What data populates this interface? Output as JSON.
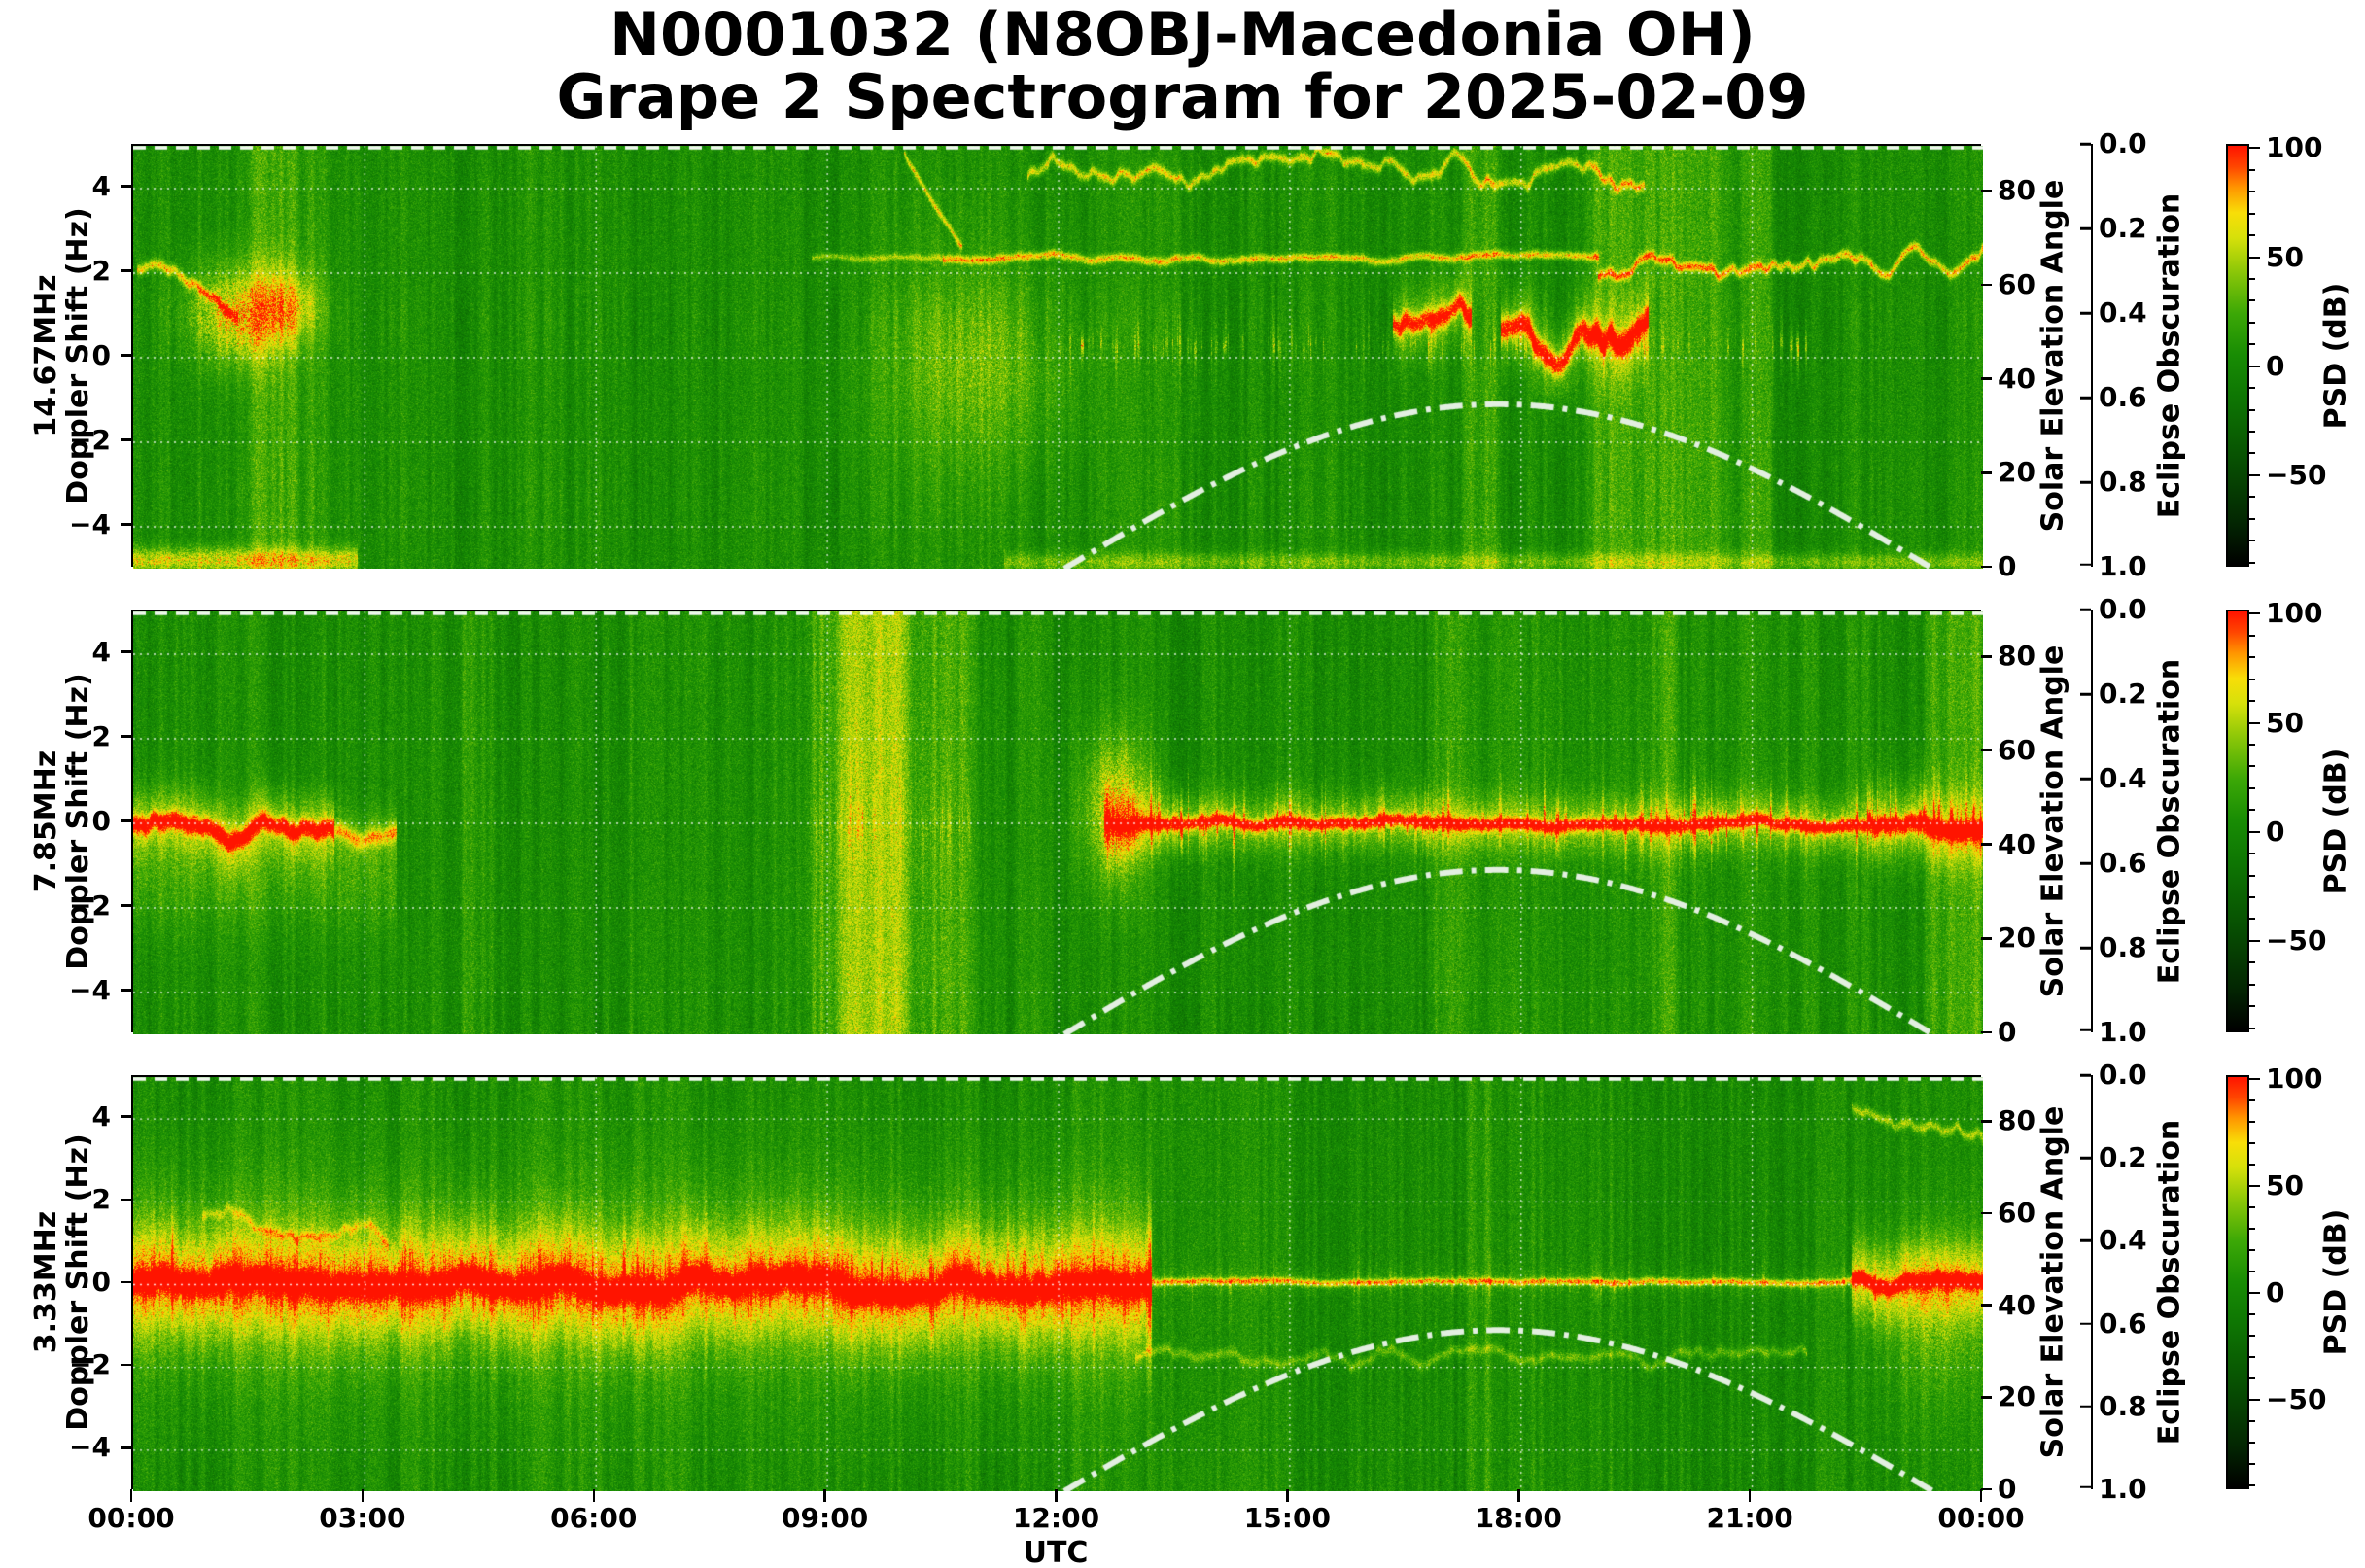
{
  "title": {
    "line1": "N0001032 (N8OBJ-Macedonia OH)",
    "line2": "Grape 2 Spectrogram for 2025-02-09"
  },
  "chart_data": {
    "type": "heatmap",
    "title": "N0001032 (N8OBJ-Macedonia OH) Grape 2 Spectrogram for 2025-02-09",
    "subtitle_note": "Three 24-hour HF Doppler-shift spectrograms (WWV beacons) with solar elevation overlay",
    "x_axis": {
      "label": "UTC",
      "range_hours": [
        0,
        24
      ],
      "tick_hours": [
        0,
        3,
        6,
        9,
        12,
        15,
        18,
        21,
        24
      ],
      "tick_labels": [
        "00:00",
        "03:00",
        "06:00",
        "09:00",
        "12:00",
        "15:00",
        "18:00",
        "21:00",
        "00:00"
      ],
      "grid": true
    },
    "doppler_axis": {
      "label_line2": "Doppler Shift (Hz)",
      "range_hz": [
        -5,
        5
      ],
      "ticks": [
        4,
        2,
        0,
        -2,
        -4
      ],
      "tick_labels": [
        "4",
        "2",
        "0",
        "−2",
        "−4"
      ],
      "grid_hz": [
        4,
        2,
        0,
        -2,
        -4
      ]
    },
    "solar_axis": {
      "label": "Solar Elevation Angle",
      "range_deg": [
        0,
        90
      ],
      "ticks": [
        0,
        20,
        40,
        60,
        80
      ],
      "tick_labels": [
        "0",
        "20",
        "40",
        "60",
        "80"
      ]
    },
    "eclipse_axis": {
      "label": "Eclipse Obscuration",
      "ticks": [
        0.0,
        0.2,
        0.4,
        0.6,
        0.8,
        1.0
      ],
      "tick_labels": [
        "0.0",
        "0.2",
        "0.4",
        "0.6",
        "0.8",
        "1.0"
      ],
      "direction": "0.0 at top, 1.0 at bottom"
    },
    "colorbar": {
      "label": "PSD (dB)",
      "major_ticks": [
        100,
        50,
        0,
        -50
      ],
      "tick_labels": [
        "100",
        "50",
        "0",
        "−50"
      ],
      "minor_step": 10,
      "vmax": 102,
      "vmin": -92,
      "cmap_stops": [
        [
          0.0,
          "#000000"
        ],
        [
          0.1,
          "#032602"
        ],
        [
          0.25,
          "#075002"
        ],
        [
          0.4,
          "#0e7603"
        ],
        [
          0.5,
          "#188c04"
        ],
        [
          0.6,
          "#3ca806"
        ],
        [
          0.7,
          "#8cc708"
        ],
        [
          0.78,
          "#d6e00a"
        ],
        [
          0.84,
          "#f8de08"
        ],
        [
          0.9,
          "#ff9600"
        ],
        [
          0.95,
          "#ff4600"
        ],
        [
          1.0,
          "#ff1400"
        ]
      ]
    },
    "solar_curve": {
      "style": "dash-dot",
      "color": "#e3efe1",
      "sunrise_utc": 12.08,
      "sunset_utc": 23.35,
      "solar_noon_utc": 17.7,
      "peak_elevation_deg": 35
    },
    "grid_color": "#ffffff",
    "panels": [
      {
        "id": "p1",
        "freq_label": "14.67MHz",
        "seed": 101,
        "features": [
          {
            "type": "trace",
            "t0": 0.05,
            "t1": 1.35,
            "f0": 2.35,
            "f1": 0.9,
            "amp": 0.32,
            "w": 4,
            "jit": 0.3
          },
          {
            "type": "patch",
            "t": 1.35,
            "f": 1.0,
            "st": 0.45,
            "sf": 0.8,
            "amp": 0.3
          },
          {
            "type": "patch",
            "t": 2.0,
            "f": 1.2,
            "st": 0.3,
            "sf": 0.6,
            "amp": 0.22
          },
          {
            "type": "column",
            "t0": 1.5,
            "t1": 2.15,
            "amp": 0.1
          },
          {
            "type": "column",
            "t0": 2.2,
            "t1": 2.5,
            "amp": 0.06
          },
          {
            "type": "bband",
            "t0": 0,
            "t1": 2.9,
            "f": -4.8,
            "amp": 0.28,
            "w": 9
          },
          {
            "type": "bband",
            "t0": 11.3,
            "t1": 24,
            "f": -4.85,
            "amp": 0.16,
            "w": 7
          },
          {
            "type": "hline",
            "t0": 8.8,
            "t1": 10.5,
            "f": 2.35,
            "amp": 0.2,
            "w": 2.5,
            "jit": 0.06
          },
          {
            "type": "trace",
            "t0": 10.0,
            "t1": 10.75,
            "f0": 4.85,
            "f1": 2.6,
            "amp": 0.3,
            "w": 3,
            "jit": 0.12
          },
          {
            "type": "hline",
            "t0": 10.5,
            "t1": 19.0,
            "f": 2.35,
            "amp": 0.34,
            "w": 3,
            "jit": 0.12
          },
          {
            "type": "hline",
            "t0": 19.0,
            "t1": 24,
            "f": 2.25,
            "amp": 0.36,
            "w": 3.5,
            "jit": 0.45
          },
          {
            "type": "patch",
            "t": 10.9,
            "f": -0.2,
            "st": 0.9,
            "sf": 1.7,
            "amp": 0.15
          },
          {
            "type": "trace",
            "t0": 11.6,
            "t1": 19.6,
            "f0": 4.55,
            "f1": 4.35,
            "amp": 0.3,
            "w": 3.5,
            "jit": 0.55
          },
          {
            "type": "streaks",
            "t0": 12.0,
            "t1": 21.7,
            "f": 0.3,
            "count": 110,
            "amp": 0.2,
            "sf": 2.3,
            "seed": 7
          },
          {
            "type": "carrier",
            "t0": 16.35,
            "t1": 17.35,
            "f": 0.7,
            "amp": 0.42,
            "w": 7,
            "jit": 0.8,
            "halo": 0.16,
            "hw": 26,
            "hot": 0.1
          },
          {
            "type": "carrier",
            "t0": 17.75,
            "t1": 19.65,
            "f": 0.45,
            "amp": 0.44,
            "w": 8,
            "jit": 0.9,
            "halo": 0.17,
            "hw": 28,
            "hot": 0.12
          },
          {
            "type": "column",
            "t0": 17.25,
            "t1": 17.75,
            "amp": 0.1
          },
          {
            "type": "column",
            "t0": 18.9,
            "t1": 20.6,
            "amp": 0.11
          },
          {
            "type": "column",
            "t0": 20.85,
            "t1": 21.25,
            "amp": 0.07
          }
        ]
      },
      {
        "id": "p2",
        "freq_label": "7.85MHz",
        "seed": 202,
        "features": [
          {
            "type": "carrier",
            "t0": 0,
            "t1": 2.6,
            "f": -0.15,
            "amp": 0.42,
            "w": 6,
            "jit": 0.35,
            "halo": 0.22,
            "hw": 24,
            "hot": 0.12
          },
          {
            "type": "carrier",
            "t0": 2.6,
            "t1": 3.4,
            "f": -0.25,
            "amp": 0.24,
            "w": 6,
            "jit": 0.3,
            "halo": 0.1,
            "hw": 18,
            "hot": 0
          },
          {
            "type": "band",
            "t0": 0,
            "t1": 3.4,
            "f": -1.3,
            "amp": 0.09,
            "w": 38
          },
          {
            "type": "column",
            "t0": 4.25,
            "t1": 4.7,
            "amp": 0.05
          },
          {
            "type": "column",
            "t0": 8.7,
            "t1": 10.9,
            "amp": 0.12
          },
          {
            "type": "column",
            "t0": 9.15,
            "t1": 10.05,
            "amp": 0.1
          },
          {
            "type": "streaks",
            "t0": 8.7,
            "t1": 10.9,
            "f": 0,
            "count": 50,
            "amp": 0.1,
            "sf": 4.5,
            "seed": 3
          },
          {
            "type": "patch",
            "t": 12.75,
            "f": 0.3,
            "st": 0.3,
            "sf": 1.2,
            "amp": 0.28
          },
          {
            "type": "carrier",
            "t0": 12.6,
            "t1": 22.5,
            "f": 0,
            "amp": 0.4,
            "w": 4.5,
            "jit": 0.15,
            "halo": 0.2,
            "hw": 20,
            "hot": 0.1
          },
          {
            "type": "carrier",
            "t0": 22.5,
            "t1": 24,
            "f": -0.05,
            "amp": 0.46,
            "w": 6,
            "jit": 0.3,
            "halo": 0.24,
            "hw": 26,
            "hot": 0.2
          },
          {
            "type": "streaks",
            "t0": 12.6,
            "t1": 24,
            "f": 0,
            "count": 170,
            "amp": 0.28,
            "sf": 2.9,
            "seed": 4
          },
          {
            "type": "column",
            "t0": 16.8,
            "t1": 17.45,
            "amp": 0.08
          },
          {
            "type": "column",
            "t0": 19.5,
            "t1": 20.05,
            "amp": 0.07
          },
          {
            "type": "column",
            "t0": 23.25,
            "t1": 24,
            "amp": 0.09
          }
        ]
      },
      {
        "id": "p3",
        "freq_label": "3.33MHz",
        "seed": 303,
        "features": [
          {
            "type": "band",
            "t0": 0,
            "t1": 13.2,
            "f": 0,
            "amp": 0.1,
            "w": 85
          },
          {
            "type": "carrier",
            "t0": 0,
            "t1": 13.2,
            "f": 0,
            "amp": 0.45,
            "w": 8,
            "jit": 0.3,
            "halo": 0.3,
            "hw": 40,
            "hot": 0.16
          },
          {
            "type": "streaks",
            "t0": 0,
            "t1": 13.2,
            "f": 0,
            "count": 240,
            "amp": 0.24,
            "sf": 3.4,
            "seed": 5
          },
          {
            "type": "trace",
            "t0": 0.9,
            "t1": 3.3,
            "f0": 1.9,
            "f1": 1.1,
            "amp": 0.16,
            "w": 3.5,
            "jit": 0.5
          },
          {
            "type": "carrier",
            "t0": 13.2,
            "t1": 22.3,
            "f": 0.05,
            "amp": 0.34,
            "w": 2.6,
            "jit": 0.05,
            "halo": 0.05,
            "hw": 9,
            "hot": 0.02
          },
          {
            "type": "hline",
            "t0": 13.0,
            "t1": 21.7,
            "f": -1.75,
            "amp": 0.15,
            "w": 3.5,
            "jit": 0.3
          },
          {
            "type": "streaks",
            "t0": 13.2,
            "t1": 24,
            "f": 0,
            "count": 70,
            "amp": 0.13,
            "sf": 2.1,
            "seed": 6
          },
          {
            "type": "carrier",
            "t0": 22.3,
            "t1": 24,
            "f": 0,
            "amp": 0.46,
            "w": 5,
            "jit": 0.25,
            "halo": 0.26,
            "hw": 28,
            "hot": 0.2
          },
          {
            "type": "trace",
            "t0": 22.3,
            "t1": 24,
            "f0": 4.3,
            "f1": 3.9,
            "amp": 0.22,
            "w": 3.5,
            "jit": 0.45
          },
          {
            "type": "patch",
            "t": 23.4,
            "f": -0.8,
            "st": 0.5,
            "sf": 1.4,
            "amp": 0.14
          },
          {
            "type": "column",
            "t0": 17.3,
            "t1": 17.6,
            "amp": 0.06
          }
        ]
      }
    ]
  }
}
